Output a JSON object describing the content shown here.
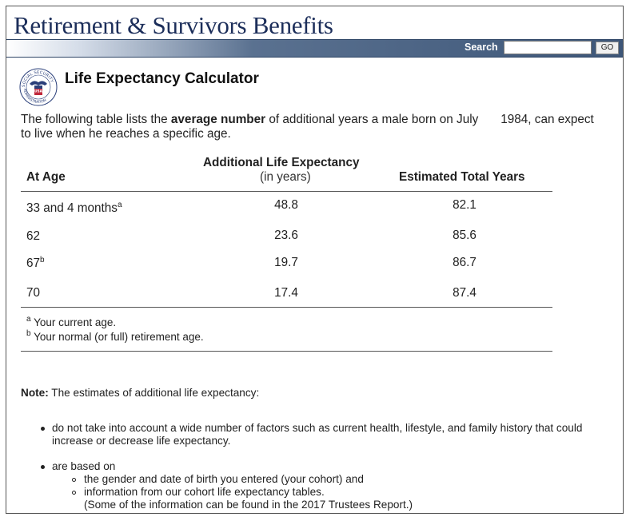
{
  "site_title": "Retirement & Survivors Benefits",
  "search": {
    "label": "Search",
    "value": "",
    "placeholder": "",
    "go_label": "GO"
  },
  "seal": {
    "top_text": "SOCIAL SECURITY",
    "bottom_text": "ADMINISTRATION",
    "center": "USA"
  },
  "page_title": "Life Expectancy Calculator",
  "intro": {
    "part1": "The following table lists the ",
    "bold": "average number",
    "part2": " of additional years a male born on July",
    "part3": "1984, can expect to live when he reaches a specific age."
  },
  "table": {
    "col_age": "At Age",
    "col_additional": "Additional Life Expectancy",
    "col_additional_sub": "(in years)",
    "col_total": "Estimated Total Years",
    "rows": [
      {
        "age": "33 and 4 months",
        "sup": "a",
        "additional": "48.8",
        "total": "82.1"
      },
      {
        "age": "62",
        "sup": "",
        "additional": "23.6",
        "total": "85.6"
      },
      {
        "age": "67",
        "sup": "b",
        "additional": "19.7",
        "total": "86.7"
      },
      {
        "age": "70",
        "sup": "",
        "additional": "17.4",
        "total": "87.4"
      }
    ],
    "footnotes": [
      {
        "mark": "a",
        "text": " Your current age."
      },
      {
        "mark": "b",
        "text": " Your normal (or full) retirement age."
      }
    ]
  },
  "note": {
    "label": "Note:",
    "text": " The estimates of additional life expectancy:",
    "bullet1": "do not take into account a wide number of factors such as current health, lifestyle, and family history that could increase or decrease life expectancy.",
    "bullet2": "are based on",
    "sub1": "the gender and date of birth you entered (your cohort) and",
    "sub2": "information from our cohort life expectancy tables.",
    "sub2_paren": "(Some of the information can be found in the 2017 Trustees Report.)"
  },
  "colors": {
    "title": "#1c2e5a",
    "navbar": "#3d5678"
  }
}
